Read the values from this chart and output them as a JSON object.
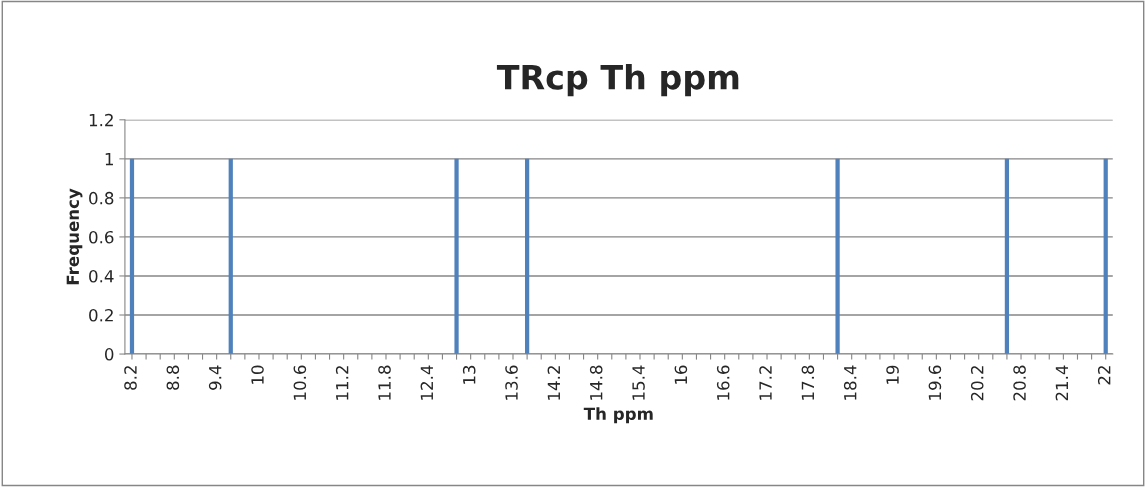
{
  "chart_data": {
    "type": "bar",
    "title": "TRcp Th ppm",
    "xlabel": "Th ppm",
    "ylabel": "Frequency",
    "categories": [
      "8.2",
      null,
      null,
      "8.8",
      null,
      null,
      "9.4",
      null,
      null,
      "10",
      null,
      null,
      "10.6",
      null,
      null,
      "11.2",
      null,
      null,
      "11.8",
      null,
      null,
      "12.4",
      null,
      null,
      "13",
      null,
      null,
      "13.6",
      null,
      null,
      "14.2",
      null,
      null,
      "14.8",
      null,
      null,
      "15.4",
      null,
      null,
      "16",
      null,
      null,
      "16.6",
      null,
      null,
      "17.2",
      null,
      null,
      "17.8",
      null,
      null,
      "18.4",
      null,
      null,
      "19",
      null,
      null,
      "19.6",
      null,
      null,
      "20.2",
      null,
      null,
      "20.8",
      null,
      null,
      "21.4",
      null,
      null,
      "22"
    ],
    "values": [
      1,
      0,
      0,
      0,
      0,
      0,
      0,
      1,
      0,
      0,
      0,
      0,
      0,
      0,
      0,
      0,
      0,
      0,
      0,
      0,
      0,
      0,
      0,
      1,
      0,
      0,
      0,
      0,
      1,
      0,
      0,
      0,
      0,
      0,
      0,
      0,
      0,
      0,
      0,
      0,
      0,
      0,
      0,
      0,
      0,
      0,
      0,
      0,
      0,
      0,
      1,
      0,
      0,
      0,
      0,
      0,
      0,
      0,
      0,
      0,
      0,
      0,
      1,
      0,
      0,
      0,
      0,
      0,
      0,
      1
    ],
    "color": "#4f81bd",
    "ylim": [
      0,
      1.2
    ],
    "yticks": [
      0,
      0.2,
      0.4,
      0.6,
      0.8,
      1,
      1.2
    ],
    "grid": "y",
    "legend": false
  }
}
